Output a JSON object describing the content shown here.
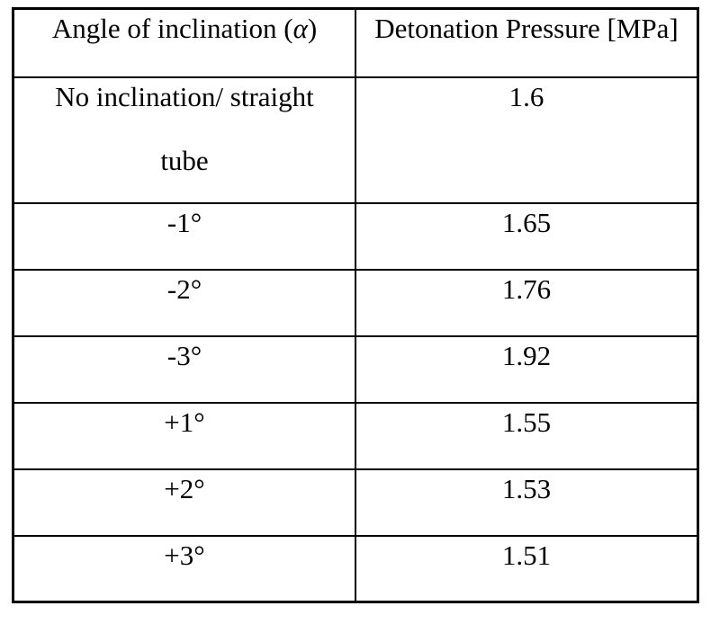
{
  "page": {
    "background_color": "#ffffff",
    "text_color": "#000000",
    "border_color": "#000000"
  },
  "table": {
    "header": {
      "angle_label_prefix": "Angle of inclination (",
      "angle_symbol": "α",
      "angle_label_suffix": ")",
      "pressure_label": "Detonation Pressure [MPa]"
    },
    "rows": [
      {
        "angle_line1": "No inclination/ straight",
        "angle_line2": "tube",
        "pressure": "1.6"
      },
      {
        "angle": "-1°",
        "pressure": "1.65"
      },
      {
        "angle": "-2°",
        "pressure": "1.76"
      },
      {
        "angle": "-3°",
        "pressure": "1.92"
      },
      {
        "angle": "+1°",
        "pressure": "1.55"
      },
      {
        "angle": "+2°",
        "pressure": "1.53"
      },
      {
        "angle": "+3°",
        "pressure": "1.51"
      }
    ]
  },
  "chart_data": {
    "type": "table",
    "columns": [
      "Angle of inclination (α)",
      "Detonation Pressure [MPa]"
    ],
    "rows": [
      [
        "No inclination/ straight tube",
        1.6
      ],
      [
        "-1°",
        1.65
      ],
      [
        "-2°",
        1.76
      ],
      [
        "-3°",
        1.92
      ],
      [
        "+1°",
        1.55
      ],
      [
        "+2°",
        1.53
      ],
      [
        "+3°",
        1.51
      ]
    ]
  }
}
